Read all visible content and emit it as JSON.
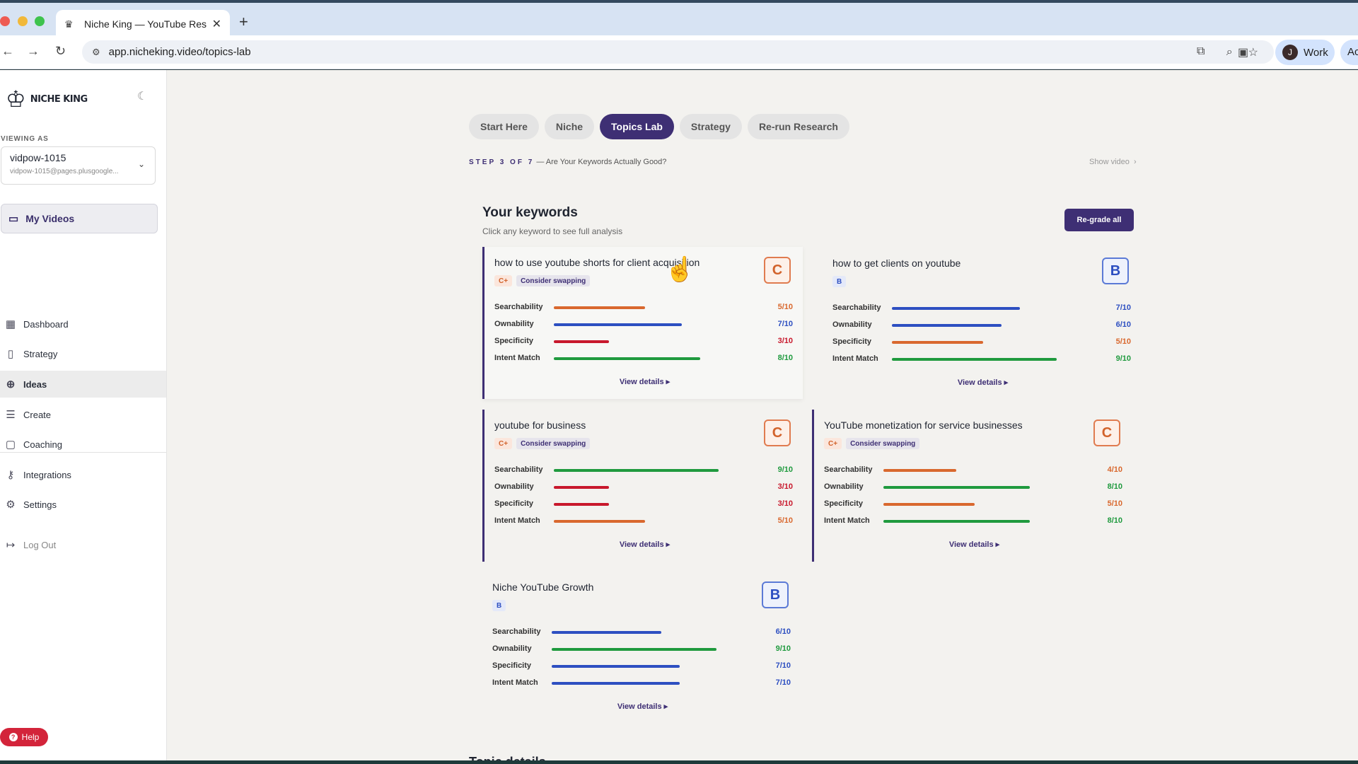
{
  "browser": {
    "tab_title": "Niche King — YouTube Research",
    "url": "app.nicheking.video/topics-lab",
    "profile_initial": "J",
    "profile_label": "Work",
    "profile2_label": "Ac"
  },
  "sidebar": {
    "brand": "NICHE KING",
    "viewing_as_label": "VIEWING AS",
    "account_name": "vidpow-1015",
    "account_email": "vidpow-1015@pages.plusgoogle...",
    "my_videos": "My Videos",
    "items": [
      {
        "label": "Dashboard",
        "icon": "dashboard-icon"
      },
      {
        "label": "Strategy",
        "icon": "book-icon"
      },
      {
        "label": "Ideas",
        "icon": "plus-circle-icon",
        "active": true
      },
      {
        "label": "Create",
        "icon": "lines-icon"
      },
      {
        "label": "Coaching",
        "icon": "chat-icon"
      },
      {
        "label": "Integrations",
        "icon": "key-icon"
      },
      {
        "label": "Settings",
        "icon": "gear-icon"
      }
    ],
    "logout": "Log Out",
    "help": "Help"
  },
  "main": {
    "tabs": [
      "Start Here",
      "Niche",
      "Topics Lab",
      "Strategy",
      "Re-run Research"
    ],
    "active_tab": "Topics Lab",
    "step_label": "STEP 3 OF 7",
    "step_text": "— Are Your Keywords Actually Good?",
    "show_video": "Show video",
    "title": "Your keywords",
    "subtitle": "Click any keyword to see full analysis",
    "regrade_button": "Re-grade all",
    "view_details": "View details ▸",
    "bottom_peek": "Topic details"
  },
  "metric_labels": [
    "Searchability",
    "Ownability",
    "Specificity",
    "Intent Match"
  ],
  "keywords": [
    {
      "title": "how to use youtube shorts for client acquisition",
      "grade": "C",
      "tag": "C+",
      "swap": "Consider swapping",
      "scores": [
        5,
        7,
        3,
        8
      ],
      "score_text": [
        "5/10",
        "7/10",
        "3/10",
        "8/10"
      ],
      "colors": [
        "orange",
        "blue",
        "red",
        "green"
      ]
    },
    {
      "title": "how to get clients on youtube",
      "grade": "B",
      "tag": "B",
      "swap": "",
      "scores": [
        7,
        6,
        5,
        9
      ],
      "score_text": [
        "7/10",
        "6/10",
        "5/10",
        "9/10"
      ],
      "colors": [
        "blue",
        "blue",
        "orange",
        "green"
      ]
    },
    {
      "title": "youtube for business",
      "grade": "C",
      "tag": "C+",
      "swap": "Consider swapping",
      "scores": [
        9,
        3,
        3,
        5
      ],
      "score_text": [
        "9/10",
        "3/10",
        "3/10",
        "5/10"
      ],
      "colors": [
        "green",
        "red",
        "red",
        "orange"
      ]
    },
    {
      "title": "YouTube monetization for service businesses",
      "grade": "C",
      "tag": "C+",
      "swap": "Consider swapping",
      "scores": [
        4,
        8,
        5,
        8
      ],
      "score_text": [
        "4/10",
        "8/10",
        "5/10",
        "8/10"
      ],
      "colors": [
        "orange",
        "green",
        "orange",
        "green"
      ]
    },
    {
      "title": "Niche YouTube Growth",
      "grade": "B",
      "tag": "B",
      "swap": "",
      "scores": [
        6,
        9,
        7,
        7
      ],
      "score_text": [
        "6/10",
        "9/10",
        "7/10",
        "7/10"
      ],
      "colors": [
        "blue",
        "green",
        "blue",
        "blue"
      ]
    }
  ]
}
